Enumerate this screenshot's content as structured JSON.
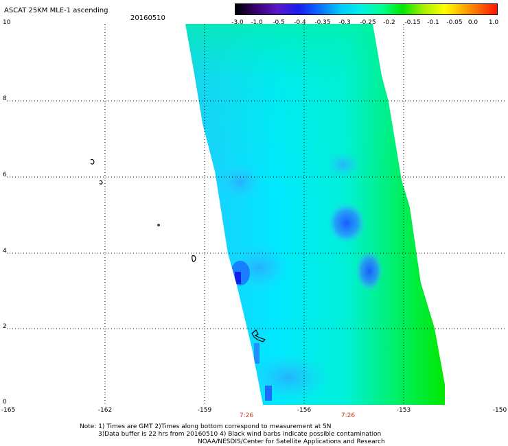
{
  "header": {
    "title": "ASCAT 25KM MLE-1 ascending",
    "date": "20160510"
  },
  "colorbar": {
    "labels": [
      "-3.0",
      "-1.0",
      "-0.5",
      "-0.4",
      "-0.35",
      "-0.3",
      "-0.25",
      "-0.2",
      "-0.15",
      "-0.1",
      "-0.05",
      "0.0",
      "1.0"
    ]
  },
  "map": {
    "y_labels": [
      "10",
      "8",
      "6",
      "4",
      "2",
      "0"
    ],
    "x_labels": [
      "-165",
      "-162",
      "-159",
      "-156",
      "-153",
      "-150"
    ],
    "pass_times": [
      "7:26",
      "7:26"
    ]
  },
  "notes": {
    "line1": "Note: 1) Times are GMT 2)Times along bottom correspond to measurement at 5N",
    "line2": "3)Data buffer is 22 hrs from 20160510 4) Black wind barbs indicate possible contamination",
    "line3": "NOAA/NESDIS/Center for Satellite Applications and Research"
  },
  "colors": {
    "grid": "#000000",
    "swath_low": "#0a6cff",
    "swath_mid": "#00f0e8",
    "swath_high": "#00e800",
    "time_label": "#c83a1a"
  }
}
